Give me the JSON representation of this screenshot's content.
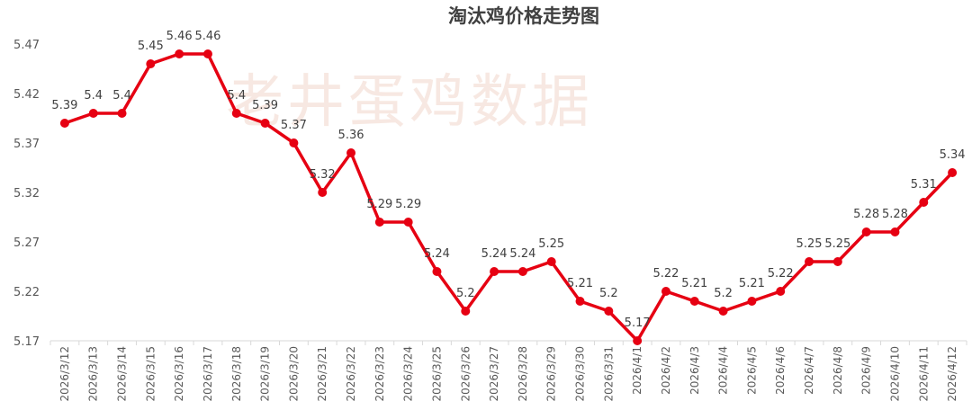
{
  "chart_data": {
    "type": "line",
    "title": "淘汰鸡价格走势图",
    "watermark": "老井蛋鸡数据",
    "xlabel": "",
    "ylabel": "",
    "ylim": [
      5.17,
      5.47
    ],
    "yticks": [
      5.17,
      5.22,
      5.27,
      5.32,
      5.37,
      5.42,
      5.47
    ],
    "ytick_labels": [
      "5.17",
      "5.22",
      "5.27",
      "5.32",
      "5.37",
      "5.42",
      "5.47"
    ],
    "grid": false,
    "legend": "none",
    "categories": [
      "2026/3/12",
      "2026/3/13",
      "2026/3/14",
      "2026/3/15",
      "2026/3/16",
      "2026/3/17",
      "2026/3/18",
      "2026/3/19",
      "2026/3/20",
      "2026/3/21",
      "2026/3/22",
      "2026/3/23",
      "2026/3/24",
      "2026/3/25",
      "2026/3/26",
      "2026/3/27",
      "2026/3/28",
      "2026/3/29",
      "2026/3/30",
      "2026/3/31",
      "2026/4/1",
      "2026/4/2",
      "2026/4/3",
      "2026/4/4",
      "2026/4/5",
      "2026/4/6",
      "2026/4/7",
      "2026/4/8",
      "2026/4/9",
      "2026/4/10",
      "2026/4/11",
      "2026/4/12"
    ],
    "values": [
      5.39,
      5.4,
      5.4,
      5.45,
      5.46,
      5.46,
      5.4,
      5.39,
      5.37,
      5.32,
      5.36,
      5.29,
      5.29,
      5.24,
      5.2,
      5.24,
      5.24,
      5.25,
      5.21,
      5.2,
      5.17,
      5.22,
      5.21,
      5.2,
      5.21,
      5.22,
      5.25,
      5.25,
      5.28,
      5.28,
      5.31,
      5.34
    ],
    "value_labels": [
      "5.39",
      "5.4",
      "5.4",
      "5.45",
      "5.46",
      "5.46",
      "5.4",
      "5.39",
      "5.37",
      "5.32",
      "5.36",
      "5.29",
      "5.29",
      "5.24",
      "5.2",
      "5.24",
      "5.24",
      "5.25",
      "5.21",
      "5.2",
      "5.17",
      "5.22",
      "5.21",
      "5.2",
      "5.21",
      "5.22",
      "5.25",
      "5.25",
      "5.28",
      "5.28",
      "5.31",
      "5.34"
    ],
    "line_color": "#e60012"
  }
}
